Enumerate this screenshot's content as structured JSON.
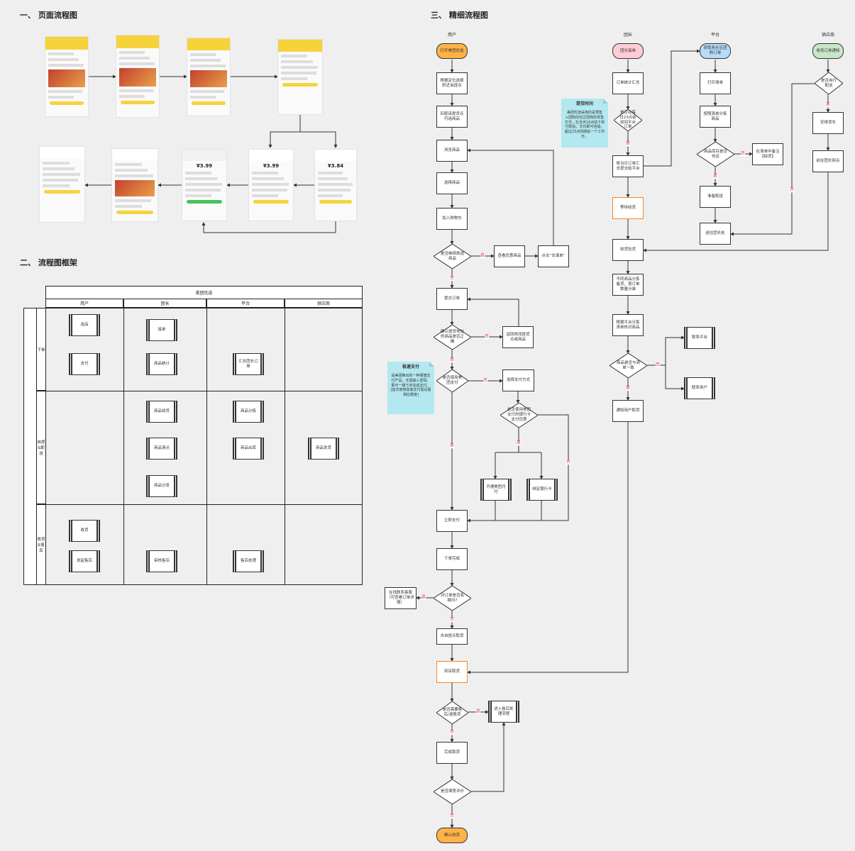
{
  "sections": {
    "s1": "一、 页面流程图",
    "s2": "二、 流程图框架",
    "s3": "三、 精细流程图"
  },
  "phones": [
    {
      "screen": "home"
    },
    {
      "screen": "category"
    },
    {
      "screen": "product-list"
    },
    {
      "screen": "order-confirm"
    },
    {
      "screen": "order-detail"
    },
    {
      "screen": "pay-success"
    },
    {
      "screen": "payment",
      "price": "¥3.99"
    },
    {
      "screen": "cashier",
      "price": "¥3.99"
    },
    {
      "screen": "cashier",
      "price": "¥3.84"
    }
  ],
  "swimlane": {
    "title": "美团优选",
    "columns": [
      "用户",
      "团长",
      "平台",
      "供应商"
    ],
    "stages": [
      "下单",
      "自提&配送",
      "收货&售后"
    ],
    "boxes": [
      "选品",
      "支付",
      "接单",
      "商品统计",
      "汇总团长订单",
      "商品分拣",
      "商品出库",
      "商品发货",
      "商品收货",
      "商品清点",
      "商品分发",
      "收货",
      "发起售后",
      "审核售后",
      "售后处理"
    ]
  },
  "flow": {
    "columns": [
      "用户",
      "团长",
      "平台",
      "供应商"
    ],
    "nodes": [
      "打开美团优选",
      "根据定位选择附近自提点",
      "匹配该提货点可选商品",
      "浏览商品",
      "选择商品",
      "加入购物车",
      "是否继续挑选商品",
      "查看优惠商品",
      "点击“去凑单”",
      "提交订单",
      "确认提货地址的商品是否正确",
      "返回修改提货点或商品",
      "是否使用美团支付",
      "选择支付方式",
      "是否使用美团支付的银行卡支付优惠",
      "开通美团月付",
      "绑定银行卡",
      "立即支付",
      "下单完成",
      "对订单是否有疑问?",
      "在线联系客服（可查看订单详情）",
      "去自提点取货",
      "到店取货",
      "是否需要售后/退换货",
      "进入售后处理流程",
      "完成取货",
      "是否满意评价",
      "确认收货",
      "团长接单",
      "订单统计汇总",
      "是否在每日23点前收到平台订单",
      "将当日订单汇总提交给平台",
      "等待收货",
      "收货验货",
      "不同商品分拣备货，按订单数量分装",
      "根据平台分拣清单核对商品",
      "商品是否与清单一致",
      "联系平台",
      "联系用户",
      "通知用户取货",
      "获取各社区团购订单",
      "打印清单",
      "按照清单分拣商品",
      "商品库存是否充足",
      "在清单中备注【缺货】",
      "准备配送",
      "送往团长处",
      "收到订单通知",
      "是否自行配送",
      "安排货车",
      "前往团长网点"
    ],
    "labels": [
      "是",
      "否",
      "否",
      "是",
      "否",
      "是",
      "否",
      "是",
      "是",
      "否",
      "是",
      "否",
      "否",
      "是",
      "否",
      "是",
      "否",
      "是",
      "是",
      "否"
    ],
    "notes": [
      {
        "title": "提货时间",
        "body": "美团优选采用的是预售+团购的社区团购的零售方式，在当天23点前下单付款后，次日即可自提，超过23点则顺延一个工作日。"
      },
      {
        "title": "极速支付",
        "body": "是美团推出的一种便捷支付产品，无需输入密码，即可一键下单完成支付。[首次使用极速支付需设置相应额度]"
      }
    ]
  },
  "colors": {
    "orange": "#ffb347",
    "pink": "#ffccd5",
    "blue": "#b8dcf8",
    "green": "#c8e6c9",
    "note": "#b3e8f0",
    "red": "#e8453c"
  }
}
